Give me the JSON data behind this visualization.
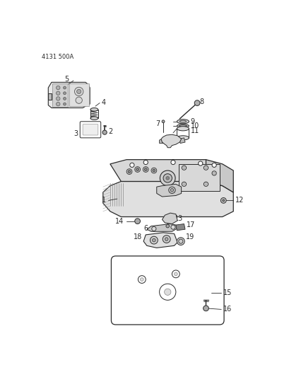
{
  "title": "4131 500A",
  "bg_color": "#ffffff",
  "line_color": "#2a2a2a",
  "fig_width": 4.1,
  "fig_height": 5.33,
  "dpi": 100,
  "gray_light": "#c8c8c8",
  "gray_mid": "#999999",
  "gray_dark": "#555555",
  "gray_fill": "#b0b0b0"
}
